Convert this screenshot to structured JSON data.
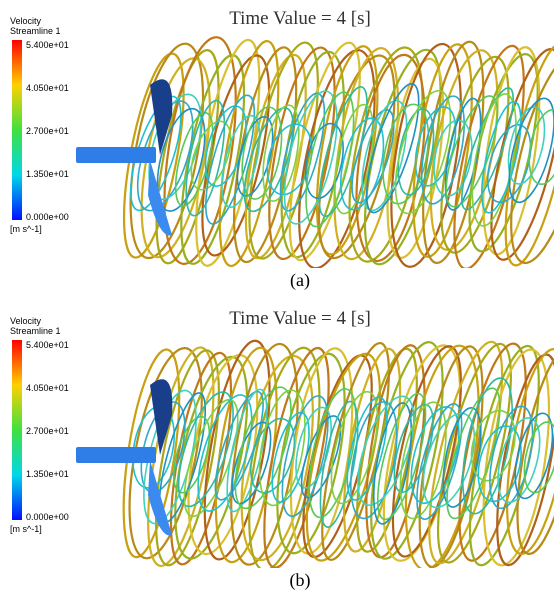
{
  "panels": [
    {
      "title": "Time Value = 4 [s]",
      "legend": {
        "title": "Velocity",
        "subtitle": "Streamline 1",
        "ticks": [
          "5.400e+01",
          "4.050e+01",
          "2.700e+01",
          "1.350e+01",
          "0.000e+00"
        ],
        "unit": "[m s^-1]"
      },
      "caption": "(a)"
    },
    {
      "title": "Time Value = 4 [s]",
      "legend": {
        "title": "Velocity",
        "subtitle": "Streamline 1",
        "ticks": [
          "5.400e+01",
          "4.050e+01",
          "2.700e+01",
          "1.350e+01",
          "0.000e+00"
        ],
        "unit": "[m s^-1]"
      },
      "caption": "(b)"
    }
  ]
}
